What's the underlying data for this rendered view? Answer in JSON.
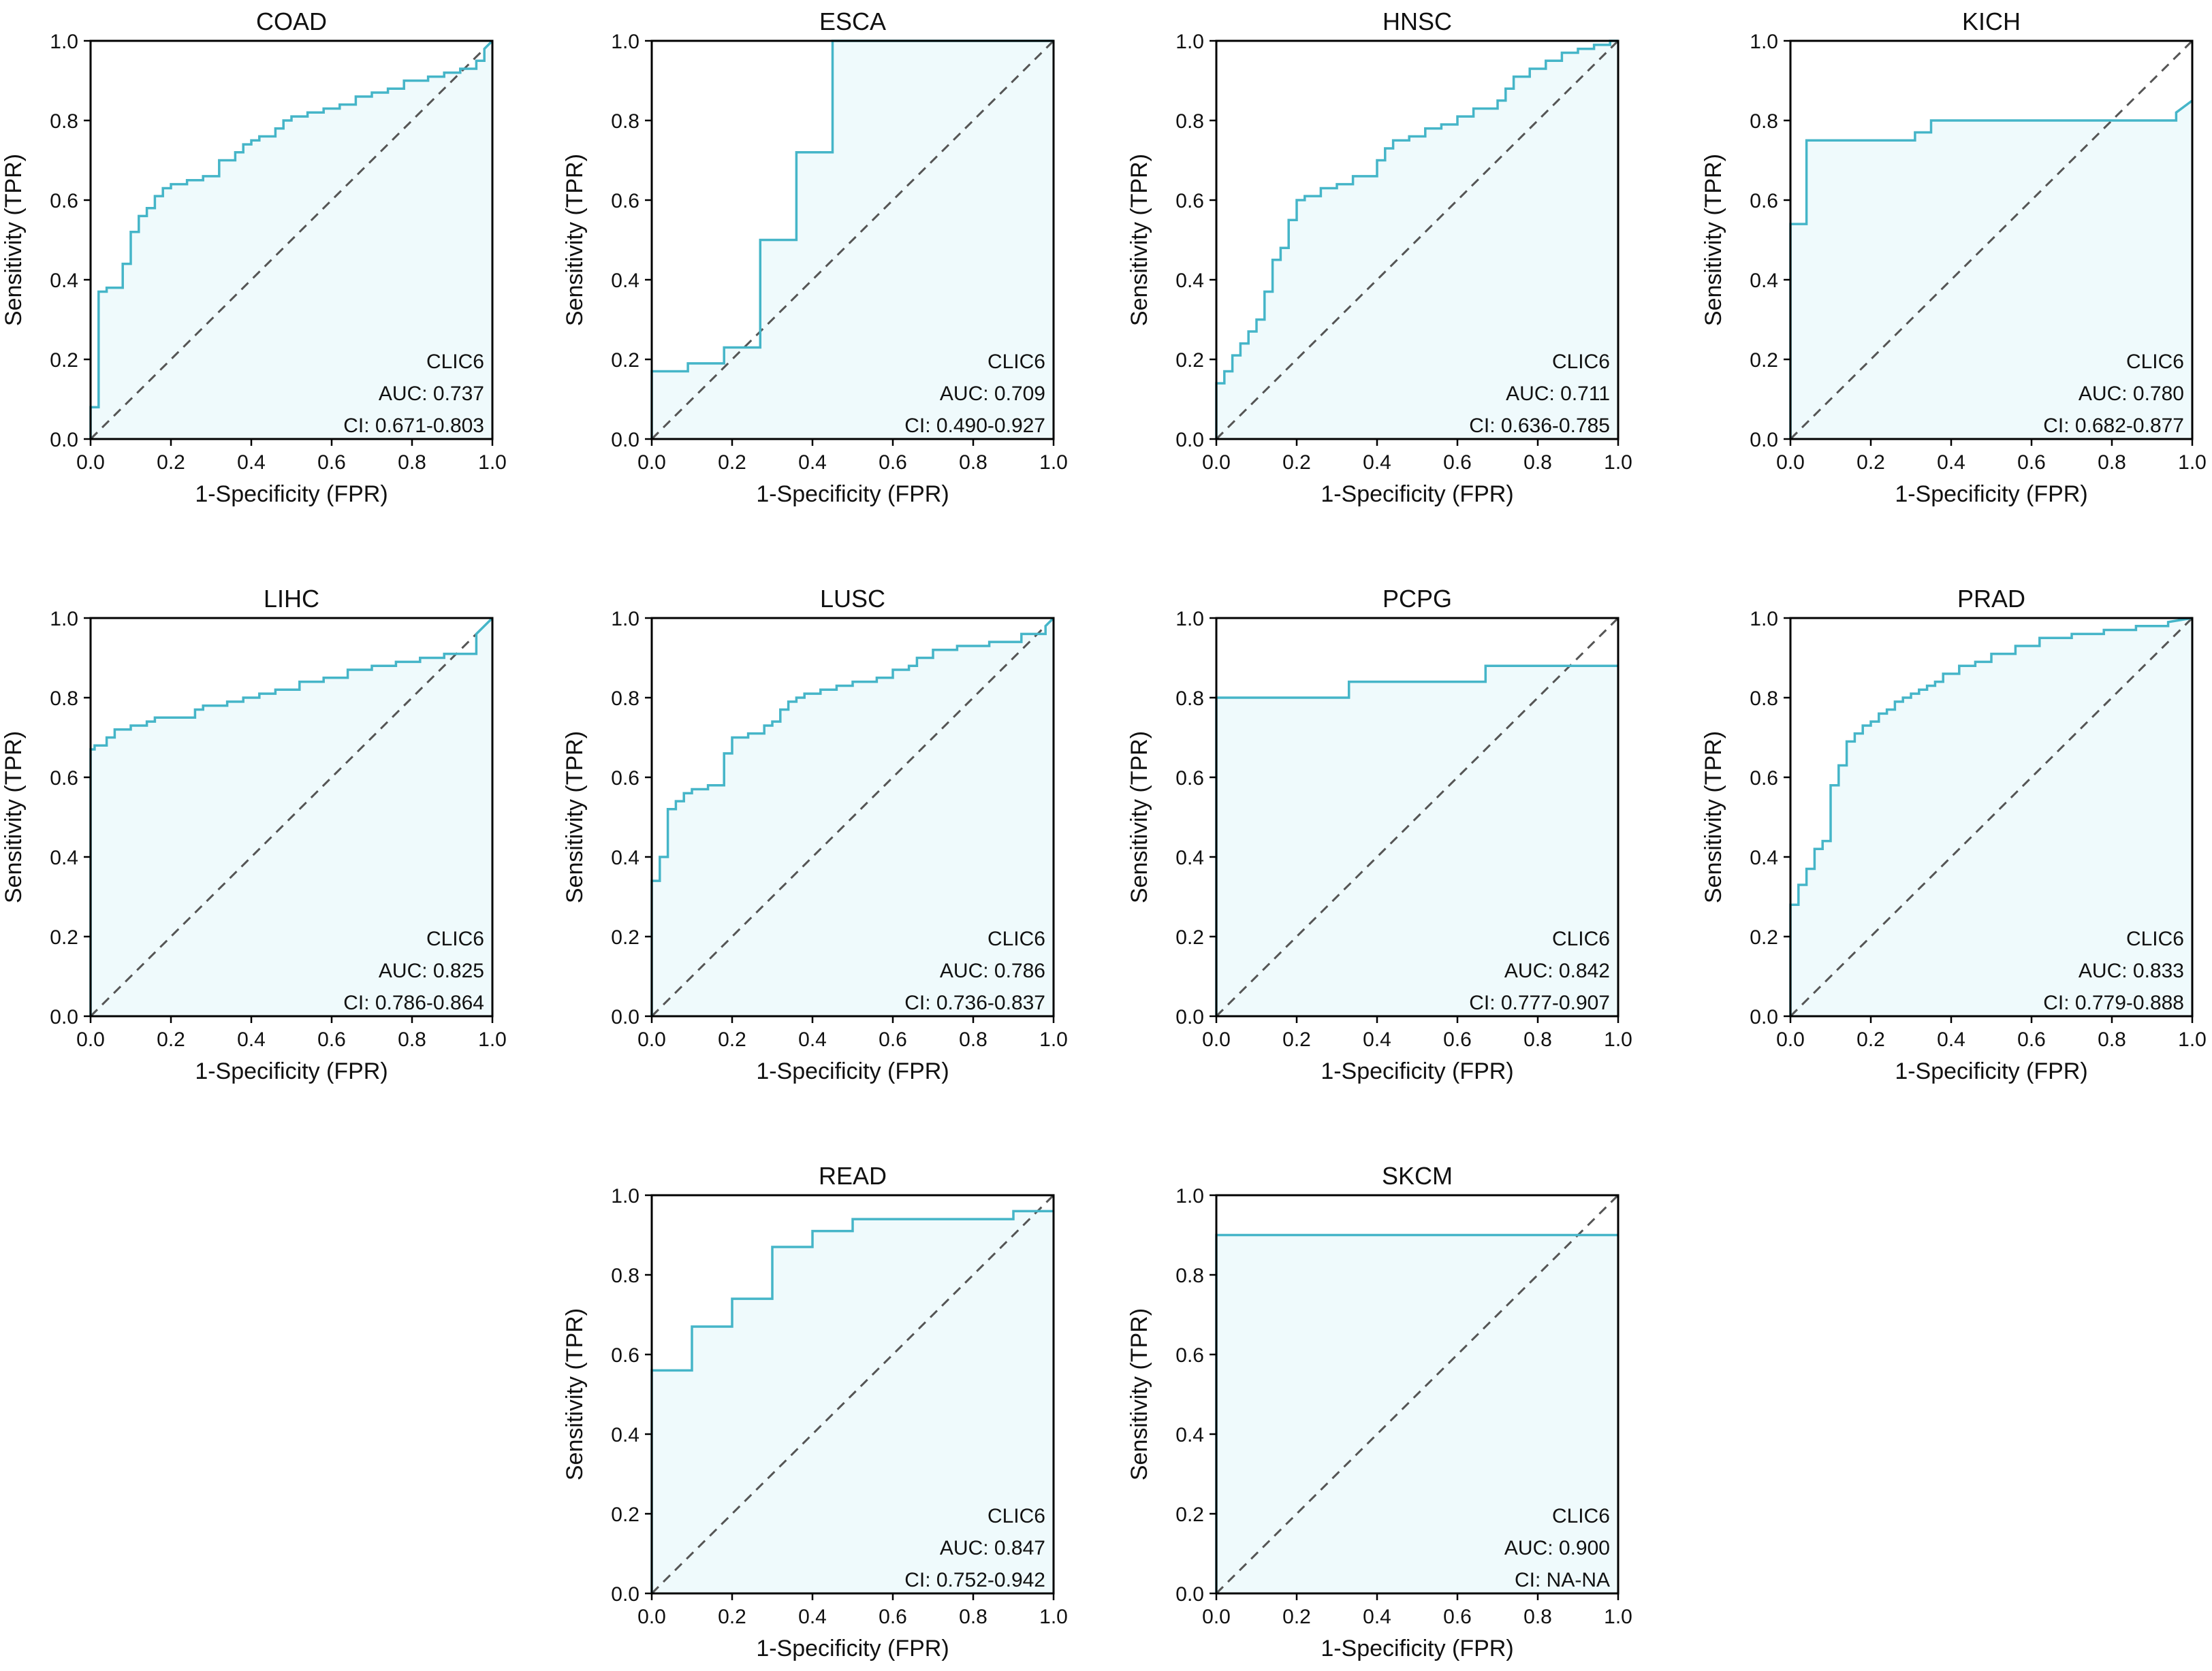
{
  "x_axis_label": "1-Specificity (FPR)",
  "y_axis_label": "Sensitivity (TPR)",
  "ticks": [
    "0.0",
    "0.2",
    "0.4",
    "0.6",
    "0.8",
    "1.0"
  ],
  "colors": {
    "curve": "#45b5c8",
    "fill": "#effafc",
    "diagonal": "#555555",
    "frame": "#000000"
  },
  "chart_data": [
    {
      "type": "line",
      "title": "COAD",
      "gene": "CLIC6",
      "auc": "AUC: 0.737",
      "ci": "CI: 0.671-0.803",
      "xlabel": "1-Specificity (FPR)",
      "ylabel": "Sensitivity (TPR)",
      "xlim": [
        0,
        1
      ],
      "ylim": [
        0,
        1
      ],
      "fpr": [
        0,
        0,
        0.02,
        0.02,
        0.04,
        0.04,
        0.08,
        0.08,
        0.1,
        0.1,
        0.12,
        0.12,
        0.14,
        0.14,
        0.16,
        0.16,
        0.18,
        0.18,
        0.2,
        0.2,
        0.24,
        0.24,
        0.28,
        0.28,
        0.32,
        0.32,
        0.36,
        0.36,
        0.38,
        0.38,
        0.4,
        0.4,
        0.42,
        0.42,
        0.46,
        0.46,
        0.48,
        0.48,
        0.5,
        0.5,
        0.54,
        0.54,
        0.58,
        0.58,
        0.62,
        0.62,
        0.66,
        0.66,
        0.7,
        0.7,
        0.74,
        0.74,
        0.78,
        0.78,
        0.84,
        0.84,
        0.88,
        0.88,
        0.92,
        0.92,
        0.96,
        0.96,
        0.98,
        0.98,
        1.0
      ],
      "tpr": [
        0,
        0.08,
        0.08,
        0.37,
        0.37,
        0.38,
        0.38,
        0.44,
        0.44,
        0.52,
        0.52,
        0.56,
        0.56,
        0.58,
        0.58,
        0.61,
        0.61,
        0.63,
        0.63,
        0.64,
        0.64,
        0.65,
        0.65,
        0.66,
        0.66,
        0.7,
        0.7,
        0.72,
        0.72,
        0.74,
        0.74,
        0.75,
        0.75,
        0.76,
        0.76,
        0.78,
        0.78,
        0.8,
        0.8,
        0.81,
        0.81,
        0.82,
        0.82,
        0.83,
        0.83,
        0.84,
        0.84,
        0.86,
        0.86,
        0.87,
        0.87,
        0.88,
        0.88,
        0.9,
        0.9,
        0.91,
        0.91,
        0.92,
        0.92,
        0.93,
        0.93,
        0.95,
        0.95,
        0.98,
        1.0
      ]
    },
    {
      "type": "line",
      "title": "ESCA",
      "gene": "CLIC6",
      "auc": "AUC: 0.709",
      "ci": "CI: 0.490-0.927",
      "xlabel": "1-Specificity (FPR)",
      "ylabel": "Sensitivity (TPR)",
      "xlim": [
        0,
        1
      ],
      "ylim": [
        0,
        1
      ],
      "fpr": [
        0,
        0,
        0.09,
        0.09,
        0.18,
        0.18,
        0.27,
        0.27,
        0.36,
        0.36,
        0.45,
        0.45,
        1.0
      ],
      "tpr": [
        0,
        0.17,
        0.17,
        0.19,
        0.19,
        0.23,
        0.23,
        0.5,
        0.5,
        0.72,
        0.72,
        1.0,
        1.0
      ]
    },
    {
      "type": "line",
      "title": "HNSC",
      "gene": "CLIC6",
      "auc": "AUC: 0.711",
      "ci": "CI: 0.636-0.785",
      "xlabel": "1-Specificity (FPR)",
      "ylabel": "Sensitivity (TPR)",
      "xlim": [
        0,
        1
      ],
      "ylim": [
        0,
        1
      ],
      "fpr": [
        0,
        0,
        0.02,
        0.02,
        0.04,
        0.04,
        0.06,
        0.06,
        0.08,
        0.08,
        0.1,
        0.1,
        0.12,
        0.12,
        0.14,
        0.14,
        0.16,
        0.16,
        0.18,
        0.18,
        0.2,
        0.2,
        0.22,
        0.22,
        0.26,
        0.26,
        0.3,
        0.3,
        0.34,
        0.34,
        0.4,
        0.4,
        0.42,
        0.42,
        0.44,
        0.44,
        0.48,
        0.48,
        0.52,
        0.52,
        0.56,
        0.56,
        0.6,
        0.6,
        0.64,
        0.64,
        0.7,
        0.7,
        0.72,
        0.72,
        0.74,
        0.74,
        0.78,
        0.78,
        0.82,
        0.82,
        0.86,
        0.86,
        0.9,
        0.9,
        0.94,
        0.94,
        0.98,
        0.98,
        1.0
      ],
      "tpr": [
        0,
        0.14,
        0.14,
        0.17,
        0.17,
        0.21,
        0.21,
        0.24,
        0.24,
        0.27,
        0.27,
        0.3,
        0.3,
        0.37,
        0.37,
        0.45,
        0.45,
        0.48,
        0.48,
        0.55,
        0.55,
        0.6,
        0.6,
        0.61,
        0.61,
        0.63,
        0.63,
        0.64,
        0.64,
        0.66,
        0.66,
        0.7,
        0.7,
        0.73,
        0.73,
        0.75,
        0.75,
        0.76,
        0.76,
        0.78,
        0.78,
        0.79,
        0.79,
        0.81,
        0.81,
        0.83,
        0.83,
        0.85,
        0.85,
        0.88,
        0.88,
        0.91,
        0.91,
        0.93,
        0.93,
        0.95,
        0.95,
        0.97,
        0.97,
        0.98,
        0.98,
        0.99,
        0.99,
        1.0,
        1.0
      ]
    },
    {
      "type": "line",
      "title": "KICH",
      "gene": "CLIC6",
      "auc": "AUC: 0.780",
      "ci": "CI: 0.682-0.877",
      "xlabel": "1-Specificity (FPR)",
      "ylabel": "Sensitivity (TPR)",
      "xlim": [
        0,
        1
      ],
      "ylim": [
        0,
        1
      ],
      "fpr": [
        0,
        0,
        0.04,
        0.04,
        0.31,
        0.31,
        0.35,
        0.35,
        0.96,
        0.96,
        1.0
      ],
      "tpr": [
        0,
        0.54,
        0.54,
        0.75,
        0.75,
        0.77,
        0.77,
        0.8,
        0.8,
        0.82,
        0.85
      ]
    },
    {
      "type": "line",
      "title": "LIHC",
      "gene": "CLIC6",
      "auc": "AUC: 0.825",
      "ci": "CI: 0.786-0.864",
      "xlabel": "1-Specificity (FPR)",
      "ylabel": "Sensitivity (TPR)",
      "xlim": [
        0,
        1
      ],
      "ylim": [
        0,
        1
      ],
      "fpr": [
        0,
        0,
        0.01,
        0.01,
        0.04,
        0.04,
        0.06,
        0.06,
        0.1,
        0.1,
        0.14,
        0.14,
        0.16,
        0.16,
        0.26,
        0.26,
        0.28,
        0.28,
        0.34,
        0.34,
        0.38,
        0.38,
        0.42,
        0.42,
        0.46,
        0.46,
        0.52,
        0.52,
        0.58,
        0.58,
        0.64,
        0.64,
        0.7,
        0.7,
        0.76,
        0.76,
        0.82,
        0.82,
        0.88,
        0.88,
        0.96,
        0.96,
        1.0
      ],
      "tpr": [
        0,
        0.67,
        0.67,
        0.68,
        0.68,
        0.7,
        0.7,
        0.72,
        0.72,
        0.73,
        0.73,
        0.74,
        0.74,
        0.75,
        0.75,
        0.77,
        0.77,
        0.78,
        0.78,
        0.79,
        0.79,
        0.8,
        0.8,
        0.81,
        0.81,
        0.82,
        0.82,
        0.84,
        0.84,
        0.85,
        0.85,
        0.87,
        0.87,
        0.88,
        0.88,
        0.89,
        0.89,
        0.9,
        0.9,
        0.91,
        0.91,
        0.96,
        1.0
      ]
    },
    {
      "type": "line",
      "title": "LUSC",
      "gene": "CLIC6",
      "auc": "AUC: 0.786",
      "ci": "CI: 0.736-0.837",
      "xlabel": "1-Specificity (FPR)",
      "ylabel": "Sensitivity (TPR)",
      "xlim": [
        0,
        1
      ],
      "ylim": [
        0,
        1
      ],
      "fpr": [
        0,
        0,
        0.02,
        0.02,
        0.04,
        0.04,
        0.06,
        0.06,
        0.08,
        0.08,
        0.1,
        0.1,
        0.14,
        0.14,
        0.18,
        0.18,
        0.2,
        0.2,
        0.24,
        0.24,
        0.28,
        0.28,
        0.3,
        0.3,
        0.32,
        0.32,
        0.34,
        0.34,
        0.36,
        0.36,
        0.38,
        0.38,
        0.42,
        0.42,
        0.46,
        0.46,
        0.5,
        0.5,
        0.56,
        0.56,
        0.6,
        0.6,
        0.64,
        0.64,
        0.66,
        0.66,
        0.7,
        0.7,
        0.76,
        0.76,
        0.84,
        0.84,
        0.92,
        0.92,
        0.98,
        0.98,
        1.0
      ],
      "tpr": [
        0,
        0.34,
        0.34,
        0.4,
        0.4,
        0.52,
        0.52,
        0.54,
        0.54,
        0.56,
        0.56,
        0.57,
        0.57,
        0.58,
        0.58,
        0.66,
        0.66,
        0.7,
        0.7,
        0.71,
        0.71,
        0.73,
        0.73,
        0.74,
        0.74,
        0.77,
        0.77,
        0.79,
        0.79,
        0.8,
        0.8,
        0.81,
        0.81,
        0.82,
        0.82,
        0.83,
        0.83,
        0.84,
        0.84,
        0.85,
        0.85,
        0.87,
        0.87,
        0.88,
        0.88,
        0.9,
        0.9,
        0.92,
        0.92,
        0.93,
        0.93,
        0.94,
        0.94,
        0.96,
        0.96,
        0.98,
        1.0
      ]
    },
    {
      "type": "line",
      "title": "PCPG",
      "gene": "CLIC6",
      "auc": "AUC: 0.842",
      "ci": "CI: 0.777-0.907",
      "xlabel": "1-Specificity (FPR)",
      "ylabel": "Sensitivity (TPR)",
      "xlim": [
        0,
        1
      ],
      "ylim": [
        0,
        1
      ],
      "fpr": [
        0,
        0,
        0.33,
        0.33,
        0.67,
        0.67,
        1.0
      ],
      "tpr": [
        0,
        0.8,
        0.8,
        0.84,
        0.84,
        0.88,
        0.88
      ]
    },
    {
      "type": "line",
      "title": "PRAD",
      "gene": "CLIC6",
      "auc": "AUC: 0.833",
      "ci": "CI: 0.779-0.888",
      "xlabel": "1-Specificity (FPR)",
      "ylabel": "Sensitivity (TPR)",
      "xlim": [
        0,
        1
      ],
      "ylim": [
        0,
        1
      ],
      "fpr": [
        0,
        0,
        0.02,
        0.02,
        0.04,
        0.04,
        0.06,
        0.06,
        0.08,
        0.08,
        0.1,
        0.1,
        0.12,
        0.12,
        0.14,
        0.14,
        0.16,
        0.16,
        0.18,
        0.18,
        0.2,
        0.2,
        0.22,
        0.22,
        0.24,
        0.24,
        0.26,
        0.26,
        0.28,
        0.28,
        0.3,
        0.3,
        0.32,
        0.32,
        0.34,
        0.34,
        0.36,
        0.36,
        0.38,
        0.38,
        0.42,
        0.42,
        0.46,
        0.46,
        0.5,
        0.5,
        0.56,
        0.56,
        0.62,
        0.62,
        0.7,
        0.7,
        0.78,
        0.78,
        0.86,
        0.86,
        0.94,
        0.94,
        1.0
      ],
      "tpr": [
        0,
        0.28,
        0.28,
        0.33,
        0.33,
        0.37,
        0.37,
        0.42,
        0.42,
        0.44,
        0.44,
        0.58,
        0.58,
        0.63,
        0.63,
        0.69,
        0.69,
        0.71,
        0.71,
        0.73,
        0.73,
        0.74,
        0.74,
        0.76,
        0.76,
        0.77,
        0.77,
        0.79,
        0.79,
        0.8,
        0.8,
        0.81,
        0.81,
        0.82,
        0.82,
        0.83,
        0.83,
        0.84,
        0.84,
        0.86,
        0.86,
        0.88,
        0.88,
        0.89,
        0.89,
        0.91,
        0.91,
        0.93,
        0.93,
        0.95,
        0.95,
        0.96,
        0.96,
        0.97,
        0.97,
        0.98,
        0.98,
        0.99,
        1.0
      ]
    },
    {
      "type": "line",
      "title": "READ",
      "gene": "CLIC6",
      "auc": "AUC: 0.847",
      "ci": "CI: 0.752-0.942",
      "xlabel": "1-Specificity (FPR)",
      "ylabel": "Sensitivity (TPR)",
      "xlim": [
        0,
        1
      ],
      "ylim": [
        0,
        1
      ],
      "fpr": [
        0,
        0,
        0.1,
        0.1,
        0.2,
        0.2,
        0.3,
        0.3,
        0.4,
        0.4,
        0.5,
        0.5,
        0.9,
        0.9,
        1.0
      ],
      "tpr": [
        0,
        0.56,
        0.56,
        0.67,
        0.67,
        0.74,
        0.74,
        0.87,
        0.87,
        0.91,
        0.91,
        0.94,
        0.94,
        0.96,
        0.96
      ]
    },
    {
      "type": "line",
      "title": "SKCM",
      "gene": "CLIC6",
      "auc": "AUC: 0.900",
      "ci": "CI: NA-NA",
      "xlabel": "1-Specificity (FPR)",
      "ylabel": "Sensitivity (TPR)",
      "xlim": [
        0,
        1
      ],
      "ylim": [
        0,
        1
      ],
      "fpr": [
        0,
        0,
        1.0
      ],
      "tpr": [
        0,
        0.9,
        0.9
      ]
    }
  ]
}
